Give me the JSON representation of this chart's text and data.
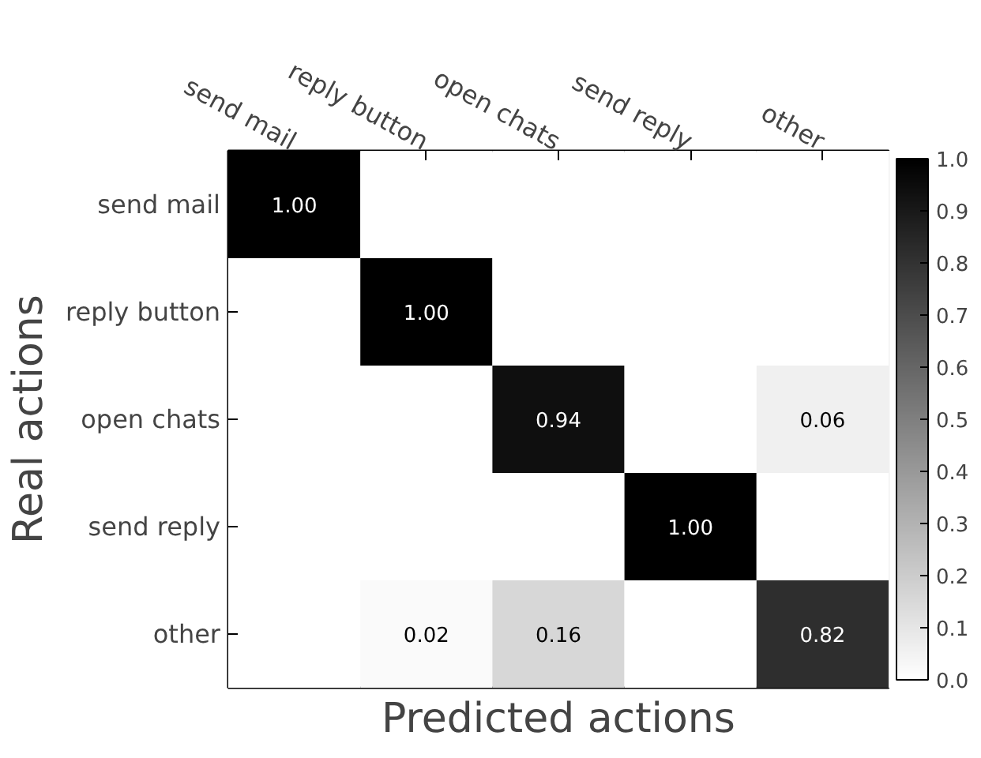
{
  "chart_data": {
    "type": "heatmap",
    "xlabel": "Predicted actions",
    "ylabel": "Real actions",
    "categories": [
      "send mail",
      "reply button",
      "open chats",
      "send reply",
      "other"
    ],
    "y_categories": [
      "send mail",
      "reply button",
      "open chats",
      "send reply",
      "other"
    ],
    "cells": [
      [
        1.0,
        0,
        0,
        0,
        0
      ],
      [
        0,
        1.0,
        0,
        0,
        0
      ],
      [
        0,
        0,
        0.94,
        0,
        0.06
      ],
      [
        0,
        0,
        0,
        1.0,
        0
      ],
      [
        0,
        0.02,
        0.16,
        0,
        0.82
      ]
    ],
    "cell_labels": [
      [
        "1.00",
        null,
        null,
        null,
        null
      ],
      [
        null,
        "1.00",
        null,
        null,
        null
      ],
      [
        null,
        null,
        "0.94",
        null,
        "0.06"
      ],
      [
        null,
        null,
        null,
        "1.00",
        null
      ],
      [
        null,
        "0.02",
        "0.16",
        null,
        "0.82"
      ]
    ],
    "clim": [
      0.0,
      1.0
    ],
    "cticks": [
      {
        "value": 0.0,
        "label": "0.0"
      },
      {
        "value": 0.1,
        "label": "0.1"
      },
      {
        "value": 0.2,
        "label": "0.2"
      },
      {
        "value": 0.3,
        "label": "0.3"
      },
      {
        "value": 0.4,
        "label": "0.4"
      },
      {
        "value": 0.5,
        "label": "0.5"
      },
      {
        "value": 0.6,
        "label": "0.6"
      },
      {
        "value": 0.7,
        "label": "0.7"
      },
      {
        "value": 0.8,
        "label": "0.8"
      },
      {
        "value": 0.9,
        "label": "0.9"
      },
      {
        "value": 1.0,
        "label": "1.0"
      }
    ]
  }
}
